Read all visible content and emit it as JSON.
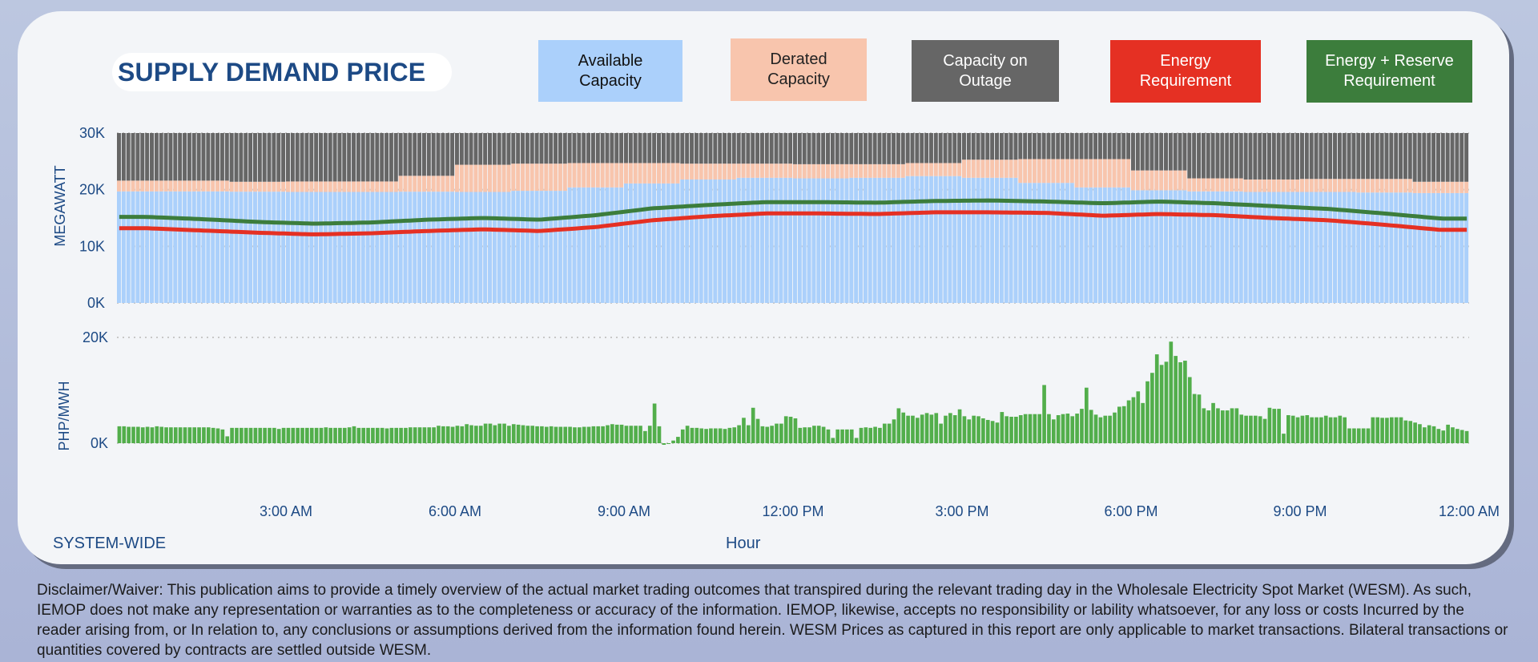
{
  "header": {
    "title": "SUPPLY DEMAND PRICE"
  },
  "legend": [
    {
      "label": "Available\nCapacity",
      "color": "#abd0fb",
      "text_color": "#111111"
    },
    {
      "label": "Derated\nCapacity",
      "color": "#f8c5ad",
      "text_color": "#222222"
    },
    {
      "label": "Capacity on\nOutage",
      "color": "#666666",
      "text_color": "#ffffff"
    },
    {
      "label": "Energy\nRequirement",
      "color": "#e53023",
      "text_color": "#ffffff"
    },
    {
      "label": "Energy + Reserve\nRequirement",
      "color": "#3c7d3c",
      "text_color": "#ffffff"
    }
  ],
  "footer": {
    "region": "SYSTEM-WIDE",
    "xlabel": "Hour"
  },
  "disclaimer": "Disclaimer/Waiver: This publication aims to provide a timely overview of the actual market trading outcomes that transpired during the relevant trading day in the Wholesale Electricity Spot Market (WESM). As such, IEMOP does not make any representation or warranties as to the completeness or accuracy of the information. IEMOP, likewise, accepts no responsibility or lability whatsoever, for any loss or costs Incurred by the reader arising from, or In relation to, any conclusions or assumptions derived from the information found herein. WESM Prices as captured in this report are only applicable to market transactions. Bilateral transactions or quantities covered by contracts are settled outside WESM.",
  "chart_data": [
    {
      "type": "bar",
      "stacked": true,
      "title": "Supply and Demand",
      "ylabel": "MEGAWATT",
      "xlabel": "Hour",
      "ylim": [
        0,
        30000
      ],
      "yticks": [
        "0K",
        "10K",
        "20K",
        "30K"
      ],
      "ytick_values": [
        0,
        10000,
        20000,
        30000
      ],
      "interval_minutes": 5,
      "intervals": 288,
      "xticks": [
        "3:00 AM",
        "6:00 AM",
        "9:00 AM",
        "12:00 PM",
        "3:00 PM",
        "6:00 PM",
        "9:00 PM",
        "12:00 AM"
      ],
      "xtick_hours": [
        3,
        6,
        9,
        12,
        15,
        18,
        21,
        24
      ],
      "hours": [
        0,
        1,
        2,
        3,
        4,
        5,
        6,
        7,
        8,
        9,
        10,
        11,
        12,
        13,
        14,
        15,
        16,
        17,
        18,
        19,
        20,
        21,
        22,
        23
      ],
      "series": [
        {
          "name": "Available Capacity",
          "kind": "bar",
          "color": "#abd0fb",
          "hourly_values": [
            19700,
            19700,
            19650,
            19600,
            19600,
            19650,
            19600,
            19800,
            20400,
            21100,
            21800,
            22100,
            22000,
            22100,
            22400,
            22100,
            21200,
            20400,
            19900,
            19700,
            19600,
            19600,
            19500,
            19400
          ]
        },
        {
          "name": "Derated Capacity",
          "kind": "bar",
          "color": "#f8c5ad",
          "hourly_values": [
            1900,
            1900,
            1750,
            1850,
            1850,
            2800,
            4800,
            4800,
            4300,
            3600,
            2800,
            2500,
            2500,
            2400,
            2300,
            3200,
            4200,
            5000,
            3500,
            2300,
            2200,
            2300,
            2400,
            2000
          ]
        },
        {
          "name": "Capacity on Outage",
          "kind": "bar",
          "color": "#666666",
          "hourly_values": [
            8400,
            8400,
            8600,
            8550,
            8550,
            7550,
            5600,
            5400,
            5300,
            5300,
            5400,
            5400,
            5500,
            5500,
            5300,
            4700,
            4600,
            4600,
            6600,
            8000,
            8200,
            8100,
            8100,
            8600
          ]
        },
        {
          "name": "Energy Requirement",
          "kind": "line",
          "color": "#e53023",
          "hourly_values": [
            13200,
            12800,
            12400,
            12100,
            12300,
            12700,
            13000,
            12700,
            13400,
            14600,
            15300,
            15800,
            15800,
            15700,
            16000,
            16000,
            15900,
            15400,
            15700,
            15500,
            15000,
            14600,
            13800,
            12900
          ]
        },
        {
          "name": "Energy + Reserve Requirement",
          "kind": "line",
          "color": "#3c7d3c",
          "hourly_values": [
            15200,
            14800,
            14300,
            14000,
            14200,
            14700,
            15000,
            14700,
            15500,
            16700,
            17300,
            17800,
            17800,
            17700,
            18000,
            18100,
            17900,
            17600,
            17900,
            17600,
            17100,
            16600,
            15800,
            14900
          ]
        }
      ]
    },
    {
      "type": "bar",
      "title": "Price",
      "ylabel": "PHP/MWH",
      "xlabel": "Hour",
      "ylim": [
        0,
        20000
      ],
      "yticks": [
        "0K",
        "20K"
      ],
      "ytick_values": [
        0,
        20000
      ],
      "interval_minutes": 5,
      "color": "#52ae4b",
      "series": [
        {
          "name": "Price",
          "values": [
            3200,
            3200,
            3100,
            3100,
            3100,
            3000,
            3100,
            3000,
            3200,
            3100,
            3000,
            3000,
            3000,
            3000,
            3000,
            3000,
            3000,
            3000,
            3000,
            3000,
            2900,
            2800,
            2600,
            1300,
            2900,
            2900,
            2900,
            2900,
            2900,
            2900,
            2900,
            2900,
            2900,
            2900,
            2700,
            2900,
            2900,
            2900,
            2900,
            2900,
            2900,
            2900,
            2900,
            2900,
            3000,
            2900,
            2900,
            2900,
            2900,
            3000,
            3200,
            2900,
            2900,
            2900,
            2900,
            2900,
            2900,
            2800,
            2900,
            2900,
            2900,
            2900,
            3000,
            3000,
            3000,
            3000,
            3000,
            3000,
            3300,
            3200,
            3200,
            3100,
            3300,
            3200,
            3600,
            3400,
            3300,
            3300,
            3700,
            3700,
            3400,
            3700,
            3700,
            3300,
            3600,
            3500,
            3400,
            3300,
            3300,
            3200,
            3200,
            3100,
            3200,
            3100,
            3100,
            3100,
            3100,
            3000,
            3000,
            3100,
            3100,
            3200,
            3200,
            3200,
            3400,
            3600,
            3500,
            3500,
            3300,
            3300,
            3300,
            3300,
            2300,
            3300,
            7500,
            3200,
            -300,
            0,
            500,
            1200,
            2600,
            3300,
            2900,
            2900,
            2800,
            2700,
            2800,
            2800,
            2800,
            2700,
            2900,
            3000,
            3400,
            4800,
            3400,
            6700,
            4600,
            3200,
            3100,
            3300,
            3700,
            3700,
            5100,
            5000,
            4700,
            2900,
            3000,
            3000,
            3300,
            3300,
            3100,
            2600,
            1000,
            2600,
            2600,
            2600,
            2600,
            1000,
            2900,
            3000,
            2900,
            3100,
            2900,
            3700,
            3700,
            4500,
            6600,
            5800,
            5200,
            5200,
            4800,
            5400,
            5700,
            5400,
            5700,
            3700,
            5200,
            5700,
            5300,
            6400,
            5100,
            4500,
            5200,
            5100,
            4700,
            4400,
            4200,
            3900,
            5900,
            5100,
            5000,
            5000,
            5300,
            5500,
            5500,
            5500,
            5500,
            11000,
            5500,
            4500,
            5300,
            5500,
            5600,
            5100,
            5600,
            6500,
            10500,
            6300,
            5400,
            4900,
            5200,
            5200,
            5800,
            6900,
            7000,
            8100,
            8700,
            9800,
            7600,
            11700,
            13300,
            16800,
            14800,
            15400,
            19200,
            16500,
            15300,
            15600,
            12500,
            9300,
            9200,
            6600,
            6200,
            7600,
            6600,
            6200,
            6200,
            6600,
            6600,
            5400,
            5200,
            5200,
            5200,
            5100,
            4600,
            6700,
            6500,
            6500,
            1800,
            5300,
            5200,
            4900,
            5200,
            5300,
            4900,
            4900,
            4900,
            5200,
            4900,
            4900,
            5200,
            4900,
            2800,
            2800,
            2800,
            2800,
            2800,
            4900,
            4900,
            4800,
            4800,
            4900,
            4900,
            4900,
            4300,
            4200,
            3900,
            3600,
            3000,
            3400,
            3200,
            2700,
            2400,
            3500,
            3000,
            2700,
            2500,
            2300
          ]
        }
      ]
    }
  ]
}
